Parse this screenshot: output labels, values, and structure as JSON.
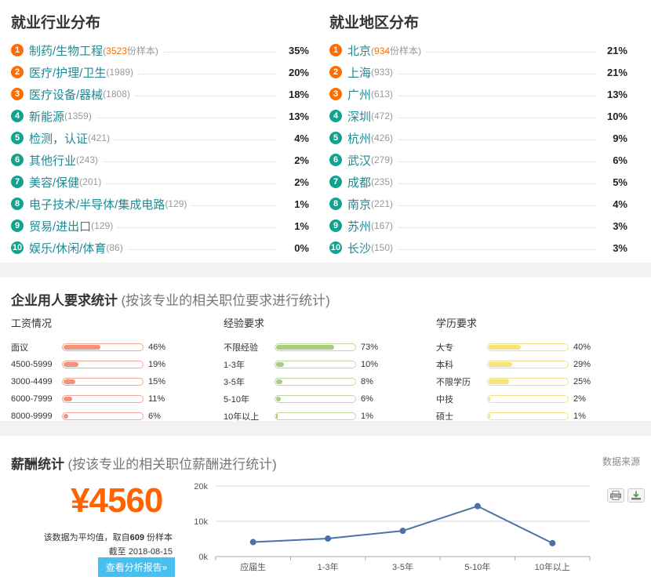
{
  "distribution": {
    "industry": {
      "title": "就业行业分布",
      "items": [
        {
          "rank": "1",
          "name": "制药/生物工程",
          "count": "3523",
          "count_suffix": "份样本",
          "pct": "35%"
        },
        {
          "rank": "2",
          "name": "医疗/护理/卫生",
          "count": "(1989)",
          "pct": "20%"
        },
        {
          "rank": "3",
          "name": "医疗设备/器械",
          "count": "(1808)",
          "pct": "18%"
        },
        {
          "rank": "4",
          "name": "新能源",
          "count": "(1359)",
          "pct": "13%"
        },
        {
          "rank": "5",
          "name": "检测，认证",
          "count": "(421)",
          "pct": "4%"
        },
        {
          "rank": "6",
          "name": "其他行业",
          "count": "(243)",
          "pct": "2%"
        },
        {
          "rank": "7",
          "name": "美容/保健",
          "count": "(201)",
          "pct": "2%"
        },
        {
          "rank": "8",
          "name": "电子技术/半导体/集成电路",
          "count": "(129)",
          "pct": "1%"
        },
        {
          "rank": "9",
          "name": "贸易/进出口",
          "count": "(129)",
          "pct": "1%"
        },
        {
          "rank": "10",
          "name": "娱乐/休闲/体育",
          "count": "(86)",
          "pct": "0%"
        }
      ]
    },
    "region": {
      "title": "就业地区分布",
      "items": [
        {
          "rank": "1",
          "name": "北京",
          "count": "934",
          "count_suffix": "份样本",
          "pct": "21%"
        },
        {
          "rank": "2",
          "name": "上海",
          "count": "(933)",
          "pct": "21%"
        },
        {
          "rank": "3",
          "name": "广州",
          "count": "(613)",
          "pct": "13%"
        },
        {
          "rank": "4",
          "name": "深圳",
          "count": "(472)",
          "pct": "10%"
        },
        {
          "rank": "5",
          "name": "杭州",
          "count": "(426)",
          "pct": "9%"
        },
        {
          "rank": "6",
          "name": "武汉",
          "count": "(279)",
          "pct": "6%"
        },
        {
          "rank": "7",
          "name": "成都",
          "count": "(235)",
          "pct": "5%"
        },
        {
          "rank": "8",
          "name": "南京",
          "count": "(221)",
          "pct": "4%"
        },
        {
          "rank": "9",
          "name": "苏州",
          "count": "(167)",
          "pct": "3%"
        },
        {
          "rank": "10",
          "name": "长沙",
          "count": "(150)",
          "pct": "3%"
        }
      ]
    }
  },
  "requirements": {
    "title": "企业用人要求统计",
    "subtitle": "(按该专业的相关职位要求进行统计)",
    "groups": [
      {
        "title": "工资情况",
        "color": "red",
        "rows": [
          {
            "label": "面议",
            "pct": "46%",
            "value": 46
          },
          {
            "label": "4500-5999",
            "pct": "19%",
            "value": 19
          },
          {
            "label": "3000-4499",
            "pct": "15%",
            "value": 15
          },
          {
            "label": "6000-7999",
            "pct": "11%",
            "value": 11
          },
          {
            "label": "8000-9999",
            "pct": "6%",
            "value": 6
          }
        ]
      },
      {
        "title": "经验要求",
        "color": "green",
        "rows": [
          {
            "label": "不限经验",
            "pct": "73%",
            "value": 73
          },
          {
            "label": "1-3年",
            "pct": "10%",
            "value": 10
          },
          {
            "label": "3-5年",
            "pct": "8%",
            "value": 8
          },
          {
            "label": "5-10年",
            "pct": "6%",
            "value": 6
          },
          {
            "label": "10年以上",
            "pct": "1%",
            "value": 1
          }
        ]
      },
      {
        "title": "学历要求",
        "color": "yellow",
        "rows": [
          {
            "label": "大专",
            "pct": "40%",
            "value": 40
          },
          {
            "label": "本科",
            "pct": "29%",
            "value": 29
          },
          {
            "label": "不限学历",
            "pct": "25%",
            "value": 25
          },
          {
            "label": "中技",
            "pct": "2%",
            "value": 2
          },
          {
            "label": "硕士",
            "pct": "1%",
            "value": 1
          }
        ]
      }
    ]
  },
  "salary": {
    "title": "薪酬统计",
    "subtitle": "(按该专业的相关职位薪酬进行统计)",
    "data_source": "数据来源",
    "amount": "¥4560",
    "note_prefix": "该数据为平均值，取自",
    "sample_count": "609",
    "note_suffix": "份样本",
    "cutoff": "截至 2018-08-15",
    "report_button": "查看分析报告»"
  },
  "chart_data": {
    "type": "line",
    "categories": [
      "应届生",
      "1-3年",
      "3-5年",
      "5-10年",
      "10年以上"
    ],
    "series": [
      {
        "values": [
          4100,
          5100,
          7300,
          14300,
          3800
        ]
      }
    ],
    "y_ticks": [
      "0k",
      "10k",
      "20k"
    ],
    "ylim": [
      0,
      20000
    ],
    "line_color": "#4a72a8",
    "grid": true
  }
}
